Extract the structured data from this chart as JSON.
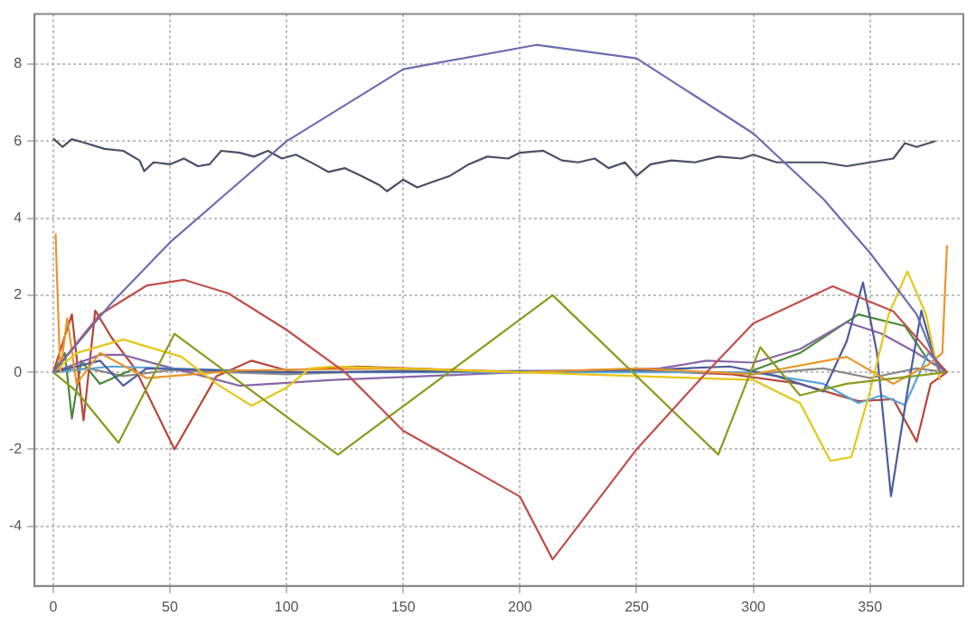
{
  "chart_data": {
    "type": "line",
    "xlim": [
      -8,
      390
    ],
    "ylim": [
      -5.55,
      9.3
    ],
    "xticks": [
      0,
      50,
      100,
      150,
      200,
      250,
      300,
      350
    ],
    "yticks": [
      -4,
      -2,
      0,
      2,
      4,
      6,
      8
    ],
    "grid": true,
    "legend": false,
    "marker": "none",
    "line_style": "solid",
    "series": [
      {
        "color": "#6a6fb0",
        "x": [
          0,
          25,
          50,
          100,
          150,
          207,
          250,
          300,
          330,
          350,
          370,
          380
        ],
        "values": [
          0,
          1.8,
          3.37,
          6.0,
          7.87,
          8.5,
          8.15,
          6.2,
          4.5,
          3.1,
          1.5,
          0
        ]
      },
      {
        "color": "#4a5068",
        "x": [
          0,
          4,
          8,
          14,
          22,
          30,
          37,
          39,
          43,
          50,
          56,
          62,
          67,
          72,
          80,
          86,
          92,
          98,
          104,
          112,
          118,
          125,
          132,
          140,
          143,
          150,
          156,
          163,
          170,
          178,
          186,
          195,
          200,
          210,
          218,
          225,
          232,
          238,
          245,
          250,
          256,
          265,
          275,
          285,
          295,
          300,
          310,
          320,
          330,
          340,
          350,
          360,
          365,
          370,
          378
        ],
        "values": [
          6.07,
          5.85,
          6.05,
          5.95,
          5.8,
          5.75,
          5.5,
          5.22,
          5.45,
          5.4,
          5.55,
          5.35,
          5.4,
          5.75,
          5.7,
          5.6,
          5.75,
          5.55,
          5.65,
          5.4,
          5.2,
          5.3,
          5.1,
          4.85,
          4.7,
          5.0,
          4.8,
          4.95,
          5.1,
          5.4,
          5.6,
          5.55,
          5.7,
          5.75,
          5.5,
          5.45,
          5.55,
          5.3,
          5.45,
          5.1,
          5.4,
          5.5,
          5.45,
          5.6,
          5.55,
          5.65,
          5.45,
          5.45,
          5.45,
          5.35,
          5.45,
          5.55,
          5.95,
          5.85,
          6.0
        ]
      },
      {
        "color": "#c0504d",
        "x": [
          0,
          20,
          40,
          56,
          75,
          100,
          125,
          150,
          200,
          214,
          250,
          280,
          300,
          334,
          360,
          383
        ],
        "values": [
          0,
          1.5,
          2.25,
          2.4,
          2.05,
          1.1,
          0,
          -1.52,
          -3.23,
          -4.86,
          -2.0,
          0,
          1.27,
          2.23,
          1.58,
          0
        ]
      },
      {
        "color": "#8c9a1e",
        "x": [
          0,
          10,
          28,
          52,
          122,
          214,
          285,
          303,
          320,
          340,
          383
        ],
        "values": [
          0,
          -0.5,
          -1.83,
          1.0,
          -2.14,
          2.0,
          -2.14,
          0.65,
          -0.6,
          -0.3,
          0
        ]
      },
      {
        "color": "#e6c619",
        "x": [
          0,
          10,
          30,
          55,
          70,
          85,
          100,
          110,
          120,
          200,
          300,
          320,
          333,
          342,
          350,
          358,
          366,
          374,
          380
        ],
        "values": [
          0,
          0.5,
          0.85,
          0.4,
          -0.3,
          -0.87,
          -0.4,
          0.1,
          0.15,
          0,
          -0.2,
          -0.8,
          -2.3,
          -2.2,
          -0.5,
          1.5,
          2.62,
          1.5,
          -0.2
        ]
      },
      {
        "color": "#e8962a",
        "x": [
          1,
          3,
          6,
          10,
          20,
          40,
          80,
          150,
          200,
          250,
          300,
          340,
          360,
          375,
          381,
          383
        ],
        "values": [
          3.6,
          0,
          1.4,
          -0.3,
          0.5,
          -0.15,
          0.05,
          0.1,
          0,
          0.1,
          -0.05,
          0.4,
          -0.3,
          0.2,
          0.5,
          3.3
        ]
      },
      {
        "color": "#4c5d9c",
        "x": [
          0,
          20,
          30,
          40,
          100,
          250,
          290,
          310,
          330,
          340,
          347,
          353,
          359,
          366,
          372,
          378,
          383
        ],
        "values": [
          0,
          0.3,
          -0.35,
          0.1,
          0,
          0.05,
          0.15,
          -0.1,
          -0.5,
          0.8,
          2.33,
          0.5,
          -3.22,
          -0.5,
          1.6,
          0.3,
          0
        ]
      },
      {
        "color": "#5aa5d6",
        "x": [
          0,
          25,
          100,
          300,
          330,
          345,
          355,
          365,
          375,
          383
        ],
        "values": [
          0,
          0.15,
          0,
          0,
          -0.3,
          -0.8,
          -0.6,
          -0.85,
          0.5,
          0
        ]
      },
      {
        "color": "#8a66a8",
        "x": [
          0,
          20,
          30,
          45,
          80,
          120,
          160,
          200,
          260,
          280,
          300,
          320,
          340,
          355,
          370,
          383
        ],
        "values": [
          0,
          0.45,
          0.45,
          0.2,
          -0.35,
          -0.2,
          -0.1,
          0,
          0.1,
          0.3,
          0.25,
          0.6,
          1.3,
          1.0,
          0.5,
          0
        ]
      },
      {
        "color": "#b8453a",
        "x": [
          0,
          8,
          13,
          18,
          25,
          35,
          52,
          70,
          85,
          100,
          130,
          200,
          250,
          290,
          320,
          345,
          360,
          370,
          376,
          383
        ],
        "values": [
          0,
          1.5,
          -1.25,
          1.6,
          0.9,
          0.1,
          -2.0,
          -0.1,
          0.3,
          0.05,
          0.15,
          0,
          0.05,
          -0.05,
          -0.3,
          -0.75,
          -0.7,
          -1.8,
          -0.3,
          0
        ]
      },
      {
        "color": "#4a8a3a",
        "x": [
          0,
          5,
          8,
          12,
          20,
          35,
          100,
          300,
          320,
          345,
          365,
          375,
          383
        ],
        "values": [
          0,
          0.5,
          -1.2,
          0.3,
          -0.3,
          0.1,
          null,
          0.05,
          0.5,
          1.5,
          1.2,
          0.3,
          0
        ]
      },
      {
        "color": "#888888",
        "x": [
          0,
          15,
          30,
          50,
          100,
          150,
          200,
          250,
          300,
          330,
          350,
          370,
          383
        ],
        "values": [
          0,
          0.1,
          -0.1,
          0.05,
          -0.05,
          0.05,
          0,
          0.05,
          -0.05,
          0.1,
          -0.15,
          0.1,
          0
        ]
      }
    ]
  }
}
